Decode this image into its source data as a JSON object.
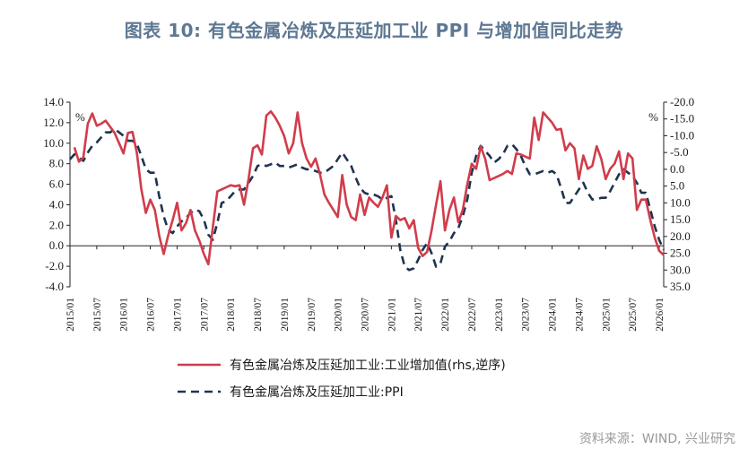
{
  "title": "图表 10: 有色金属冶炼及压延加工业 PPI 与增加值同比走势",
  "source": "资料来源：WIND, 兴业研究",
  "chart_data": {
    "type": "line",
    "left_axis": {
      "unit": "%",
      "ylim": [
        -4,
        14
      ],
      "ticks": [
        "14.0",
        "12.0",
        "10.0",
        "8.0",
        "6.0",
        "4.0",
        "2.0",
        "0.0",
        "-2.0",
        "-4.0"
      ]
    },
    "right_axis": {
      "unit": "%",
      "reversed": true,
      "ylim": [
        -20,
        35
      ],
      "ticks": [
        "-20.0",
        "-15.0",
        "-10.0",
        "-5.0",
        "0.0",
        "5.0",
        "10.0",
        "15.0",
        "20.0",
        "25.0",
        "30.0",
        "35.0"
      ]
    },
    "x_ticks": [
      "2015/01",
      "2015/07",
      "2016/01",
      "2016/07",
      "2017/01",
      "2017/07",
      "2018/01",
      "2018/07",
      "2019/01",
      "2019/07",
      "2020/01",
      "2020/07",
      "2021/01",
      "2021/07",
      "2022/01",
      "2022/07",
      "2023/01",
      "2023/07",
      "2024/01",
      "2024/07",
      "2025/01",
      "2025/07",
      "2026/01"
    ],
    "legend_position": "bottom",
    "series": [
      {
        "name": "有色金属冶炼及压延加工业:工业增加值(rhs,逆序)",
        "axis": "left",
        "color": "#d13c4b",
        "style": "solid",
        "points": [
          [
            "2015/02",
            9.6
          ],
          [
            "2015/03",
            8.2
          ],
          [
            "2015/04",
            8.6
          ],
          [
            "2015/05",
            11.9
          ],
          [
            "2015/06",
            12.9
          ],
          [
            "2015/07",
            11.7
          ],
          [
            "2015/08",
            11.9
          ],
          [
            "2015/09",
            12.2
          ],
          [
            "2015/10",
            11.6
          ],
          [
            "2015/11",
            11.0
          ],
          [
            "2015/12",
            10.0
          ],
          [
            "2016/01",
            9.0
          ],
          [
            "2016/02",
            11.0
          ],
          [
            "2016/03",
            11.1
          ],
          [
            "2016/04",
            9.0
          ],
          [
            "2016/05",
            5.5
          ],
          [
            "2016/06",
            3.2
          ],
          [
            "2016/07",
            4.5
          ],
          [
            "2016/08",
            3.5
          ],
          [
            "2016/09",
            1.0
          ],
          [
            "2016/10",
            -0.8
          ],
          [
            "2016/11",
            1.0
          ],
          [
            "2016/12",
            2.5
          ],
          [
            "2017/01",
            4.2
          ],
          [
            "2017/02",
            1.5
          ],
          [
            "2017/03",
            2.2
          ],
          [
            "2017/04",
            3.5
          ],
          [
            "2017/05",
            1.5
          ],
          [
            "2017/06",
            0.5
          ],
          [
            "2017/07",
            -0.8
          ],
          [
            "2017/08",
            -1.8
          ],
          [
            "2017/09",
            1.8
          ],
          [
            "2017/10",
            5.3
          ],
          [
            "2017/11",
            5.5
          ],
          [
            "2017/12",
            5.7
          ],
          [
            "2018/01",
            5.9
          ],
          [
            "2018/02",
            5.8
          ],
          [
            "2018/03",
            5.9
          ],
          [
            "2018/04",
            4.0
          ],
          [
            "2018/05",
            6.5
          ],
          [
            "2018/06",
            9.5
          ],
          [
            "2018/07",
            9.8
          ],
          [
            "2018/08",
            8.9
          ],
          [
            "2018/09",
            12.7
          ],
          [
            "2018/10",
            13.1
          ],
          [
            "2018/11",
            12.5
          ],
          [
            "2018/12",
            11.7
          ],
          [
            "2019/01",
            10.7
          ],
          [
            "2019/02",
            9.0
          ],
          [
            "2019/03",
            10.0
          ],
          [
            "2019/04",
            13.0
          ],
          [
            "2019/05",
            10.0
          ],
          [
            "2019/06",
            8.5
          ],
          [
            "2019/07",
            7.7
          ],
          [
            "2019/08",
            8.5
          ],
          [
            "2019/09",
            7.0
          ],
          [
            "2019/10",
            5.0
          ],
          [
            "2019/11",
            4.2
          ],
          [
            "2019/12",
            3.5
          ],
          [
            "2020/01",
            2.8
          ],
          [
            "2020/02",
            6.9
          ],
          [
            "2020/03",
            4.0
          ],
          [
            "2020/04",
            2.8
          ],
          [
            "2020/05",
            2.5
          ],
          [
            "2020/06",
            5.0
          ],
          [
            "2020/07",
            3.0
          ],
          [
            "2020/08",
            4.7
          ],
          [
            "2020/09",
            4.2
          ],
          [
            "2020/10",
            3.8
          ],
          [
            "2020/11",
            4.7
          ],
          [
            "2020/12",
            5.9
          ],
          [
            "2021/01",
            0.8
          ],
          [
            "2021/02",
            2.9
          ],
          [
            "2021/03",
            2.5
          ],
          [
            "2021/04",
            2.7
          ],
          [
            "2021/05",
            1.7
          ],
          [
            "2021/06",
            2.5
          ],
          [
            "2021/07",
            -0.2
          ],
          [
            "2021/08",
            -1.0
          ],
          [
            "2021/09",
            -0.6
          ],
          [
            "2021/10",
            1.5
          ],
          [
            "2021/11",
            4.0
          ],
          [
            "2021/12",
            6.3
          ],
          [
            "2022/01",
            1.5
          ],
          [
            "2022/02",
            3.5
          ],
          [
            "2022/03",
            4.7
          ],
          [
            "2022/04",
            2.3
          ],
          [
            "2022/05",
            3.5
          ],
          [
            "2022/06",
            6.0
          ],
          [
            "2022/07",
            8.0
          ],
          [
            "2022/08",
            7.5
          ],
          [
            "2022/09",
            9.7
          ],
          [
            "2022/10",
            8.5
          ],
          [
            "2022/11",
            6.4
          ],
          [
            "2022/12",
            6.6
          ],
          [
            "2023/01",
            6.8
          ],
          [
            "2023/02",
            7.0
          ],
          [
            "2023/03",
            7.3
          ],
          [
            "2023/04",
            7.0
          ],
          [
            "2023/05",
            9.0
          ],
          [
            "2023/06",
            8.9
          ],
          [
            "2023/07",
            8.7
          ],
          [
            "2023/08",
            8.5
          ],
          [
            "2023/09",
            12.5
          ],
          [
            "2023/10",
            10.3
          ],
          [
            "2023/11",
            13.0
          ],
          [
            "2023/12",
            12.5
          ],
          [
            "2024/01",
            12.0
          ],
          [
            "2024/02",
            11.3
          ],
          [
            "2024/03",
            11.4
          ],
          [
            "2024/04",
            9.3
          ],
          [
            "2024/05",
            10.0
          ],
          [
            "2024/06",
            9.5
          ],
          [
            "2024/07",
            6.5
          ],
          [
            "2024/08",
            8.8
          ],
          [
            "2024/09",
            7.5
          ],
          [
            "2024/10",
            7.8
          ],
          [
            "2024/11",
            9.7
          ],
          [
            "2024/12",
            8.5
          ],
          [
            "2025/01",
            6.5
          ],
          [
            "2025/02",
            7.5
          ],
          [
            "2025/03",
            8.0
          ],
          [
            "2025/04",
            9.2
          ],
          [
            "2025/05",
            6.5
          ],
          [
            "2025/06",
            9.0
          ],
          [
            "2025/07",
            8.5
          ],
          [
            "2025/08",
            3.5
          ],
          [
            "2025/09",
            4.5
          ],
          [
            "2025/10",
            4.5
          ],
          [
            "2025/11",
            2.5
          ],
          [
            "2025/12",
            0.8
          ],
          [
            "2026/01",
            -0.5
          ],
          [
            "2026/02",
            -0.9
          ]
        ]
      },
      {
        "name": "有色金属冶炼及压延加工业:PPI",
        "axis": "right",
        "color": "#1f3350",
        "style": "dashed",
        "points": [
          [
            "2015/01",
            -3.0
          ],
          [
            "2015/02",
            -4.5
          ],
          [
            "2015/03",
            -3.5
          ],
          [
            "2015/04",
            -2.5
          ],
          [
            "2015/05",
            -5.0
          ],
          [
            "2015/06",
            -7.0
          ],
          [
            "2015/07",
            -8.0
          ],
          [
            "2015/08",
            -9.5
          ],
          [
            "2015/09",
            -11.0
          ],
          [
            "2015/10",
            -11.0
          ],
          [
            "2015/11",
            -12.0
          ],
          [
            "2015/12",
            -11.0
          ],
          [
            "2016/01",
            -10.0
          ],
          [
            "2016/02",
            -8.5
          ],
          [
            "2016/03",
            -8.5
          ],
          [
            "2016/04",
            -7.5
          ],
          [
            "2016/05",
            -4.0
          ],
          [
            "2016/06",
            0.0
          ],
          [
            "2016/07",
            1.0
          ],
          [
            "2016/08",
            1.0
          ],
          [
            "2016/09",
            8.0
          ],
          [
            "2016/10",
            14.0
          ],
          [
            "2016/11",
            18.0
          ],
          [
            "2016/12",
            19.0
          ],
          [
            "2017/01",
            17.0
          ],
          [
            "2017/02",
            15.5
          ],
          [
            "2017/03",
            14.5
          ],
          [
            "2017/04",
            13.0
          ],
          [
            "2017/05",
            12.0
          ],
          [
            "2017/06",
            12.5
          ],
          [
            "2017/07",
            15.0
          ],
          [
            "2017/08",
            19.5
          ],
          [
            "2017/09",
            21.0
          ],
          [
            "2017/10",
            16.0
          ],
          [
            "2017/11",
            10.0
          ],
          [
            "2017/12",
            9.5
          ],
          [
            "2018/01",
            8.0
          ],
          [
            "2018/02",
            6.5
          ],
          [
            "2018/03",
            6.0
          ],
          [
            "2018/04",
            6.0
          ],
          [
            "2018/05",
            4.0
          ],
          [
            "2018/06",
            2.0
          ],
          [
            "2018/07",
            -1.0
          ],
          [
            "2018/08",
            -1.5
          ],
          [
            "2018/09",
            -1.0
          ],
          [
            "2018/10",
            -1.5
          ],
          [
            "2018/11",
            -2.0
          ],
          [
            "2018/12",
            -1.0
          ],
          [
            "2019/01",
            -1.0
          ],
          [
            "2019/02",
            -0.5
          ],
          [
            "2019/03",
            -1.0
          ],
          [
            "2019/04",
            -1.5
          ],
          [
            "2019/05",
            -0.5
          ],
          [
            "2019/06",
            0.0
          ],
          [
            "2019/07",
            0.0
          ],
          [
            "2019/08",
            0.5
          ],
          [
            "2019/09",
            1.0
          ],
          [
            "2019/10",
            1.0
          ],
          [
            "2019/11",
            0.0
          ],
          [
            "2019/12",
            -1.0
          ],
          [
            "2020/01",
            -3.0
          ],
          [
            "2020/02",
            -5.0
          ],
          [
            "2020/03",
            -3.0
          ],
          [
            "2020/04",
            -1.0
          ],
          [
            "2020/05",
            2.5
          ],
          [
            "2020/06",
            5.5
          ],
          [
            "2020/07",
            7.0
          ],
          [
            "2020/08",
            7.5
          ],
          [
            "2020/09",
            7.5
          ],
          [
            "2020/10",
            8.0
          ],
          [
            "2020/11",
            9.0
          ],
          [
            "2020/12",
            8.5
          ],
          [
            "2021/01",
            8.0
          ],
          [
            "2021/02",
            15.0
          ],
          [
            "2021/03",
            24.0
          ],
          [
            "2021/04",
            29.0
          ],
          [
            "2021/05",
            30.0
          ],
          [
            "2021/06",
            29.5
          ],
          [
            "2021/07",
            27.0
          ],
          [
            "2021/08",
            24.0
          ],
          [
            "2021/09",
            22.0
          ],
          [
            "2021/10",
            25.0
          ],
          [
            "2021/11",
            29.0
          ],
          [
            "2021/12",
            28.0
          ],
          [
            "2022/01",
            23.0
          ],
          [
            "2022/02",
            21.5
          ],
          [
            "2022/03",
            19.0
          ],
          [
            "2022/04",
            17.5
          ],
          [
            "2022/05",
            14.0
          ],
          [
            "2022/06",
            9.0
          ],
          [
            "2022/07",
            1.0
          ],
          [
            "2022/08",
            -4.0
          ],
          [
            "2022/09",
            -7.0
          ],
          [
            "2022/10",
            -5.5
          ],
          [
            "2022/11",
            -4.0
          ],
          [
            "2022/12",
            -2.0
          ],
          [
            "2023/01",
            -3.0
          ],
          [
            "2023/02",
            -4.5
          ],
          [
            "2023/03",
            -7.0
          ],
          [
            "2023/04",
            -7.5
          ],
          [
            "2023/05",
            -6.0
          ],
          [
            "2023/06",
            -4.0
          ],
          [
            "2023/07",
            -1.0
          ],
          [
            "2023/08",
            1.5
          ],
          [
            "2023/09",
            1.5
          ],
          [
            "2023/10",
            1.0
          ],
          [
            "2023/11",
            0.5
          ],
          [
            "2023/12",
            1.0
          ],
          [
            "2024/01",
            0.5
          ],
          [
            "2024/02",
            1.5
          ],
          [
            "2024/03",
            5.5
          ],
          [
            "2024/04",
            10.0
          ],
          [
            "2024/05",
            10.0
          ],
          [
            "2024/06",
            8.0
          ],
          [
            "2024/07",
            6.0
          ],
          [
            "2024/08",
            4.0
          ],
          [
            "2024/09",
            7.0
          ],
          [
            "2024/10",
            9.0
          ],
          [
            "2024/11",
            9.0
          ],
          [
            "2024/12",
            8.5
          ],
          [
            "2025/01",
            8.5
          ],
          [
            "2025/02",
            6.5
          ],
          [
            "2025/03",
            4.0
          ],
          [
            "2025/04",
            1.5
          ],
          [
            "2025/05",
            0.0
          ],
          [
            "2025/06",
            1.0
          ],
          [
            "2025/07",
            2.0
          ],
          [
            "2025/08",
            4.0
          ],
          [
            "2025/09",
            7.0
          ],
          [
            "2025/10",
            7.0
          ],
          [
            "2025/11",
            12.0
          ],
          [
            "2025/12",
            17.0
          ],
          [
            "2026/01",
            21.0
          ],
          [
            "2026/02",
            24.0
          ]
        ]
      }
    ]
  }
}
